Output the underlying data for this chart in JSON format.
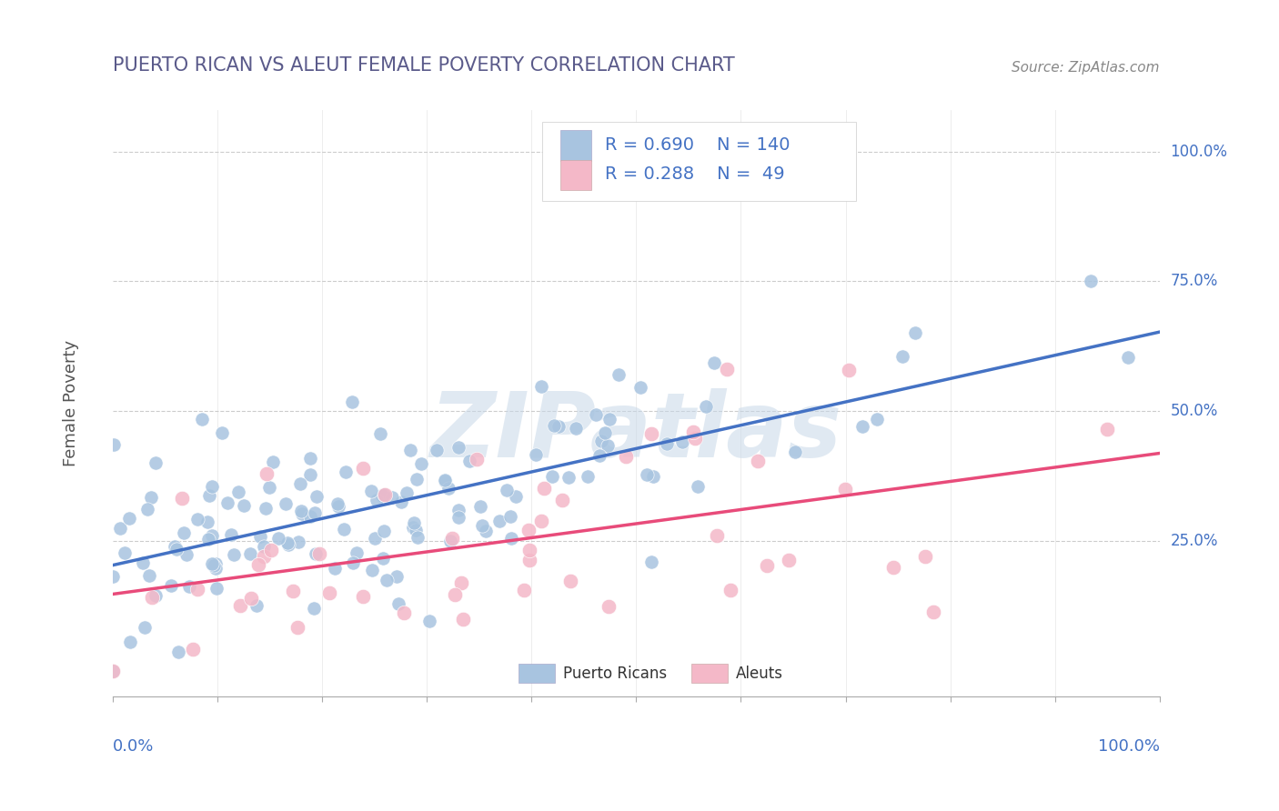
{
  "title": "PUERTO RICAN VS ALEUT FEMALE POVERTY CORRELATION CHART",
  "source": "Source: ZipAtlas.com",
  "ylabel": "Female Poverty",
  "pr_r_val": "0.690",
  "pr_n_val": "140",
  "aleut_r_val": "0.288",
  "aleut_n_val": " 49",
  "pr_color": "#a8c4e0",
  "aleut_color": "#f4b8c8",
  "pr_line_color": "#4472c4",
  "aleut_line_color": "#e84b7a",
  "watermark": "ZIPatlas",
  "pr_r": 0.69,
  "pr_n": 140,
  "aleut_r": 0.288,
  "aleut_n": 49,
  "background_color": "#ffffff",
  "grid_color": "#cccccc",
  "title_color": "#5a5a8a",
  "axis_label_color": "#4472c4",
  "legend_text_color": "#4472c4"
}
